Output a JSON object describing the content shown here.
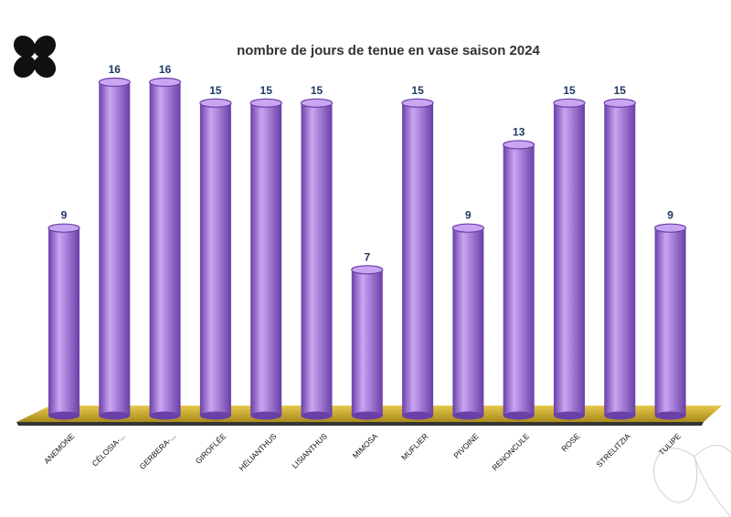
{
  "chart_data": {
    "type": "bar",
    "title": "nombre de jours de tenue en vase saison 2024",
    "categories": [
      "ANEMONE",
      "CÉLOSIA-...",
      "GERBERA-...",
      "GIROFLÉE",
      "HÉLIANTHUS",
      "LISIANTHUS",
      "MIMOSA",
      "MUFLIER",
      "PIVOINE",
      "RENONCULE",
      "ROSE",
      "STRELITZIA",
      "TULIPE"
    ],
    "series": [
      {
        "values": [
          9,
          16,
          16,
          15,
          15,
          15,
          7,
          15,
          9,
          13,
          15,
          15,
          9
        ]
      }
    ],
    "value_labels": [
      "9",
      "16",
      "16",
      "15",
      "15",
      "15",
      "7",
      "15",
      "9",
      "13",
      "15",
      "15",
      "9"
    ],
    "xlabel": "",
    "ylabel": "",
    "ylim": [
      0,
      16
    ],
    "grid": false,
    "legend": "none",
    "style": "3d-cylinder",
    "colors": {
      "bar": "#9b6fd6",
      "bar_light": "#c9a6f2",
      "bar_dark": "#6a3fa8",
      "floor": "#d4b52f",
      "floor_edge": "#8a6f10",
      "value_label": "#1f3864"
    }
  },
  "decorations": {
    "logo_icon": "four-petal-clover-black",
    "corner_icon": "flower-outline-white"
  }
}
